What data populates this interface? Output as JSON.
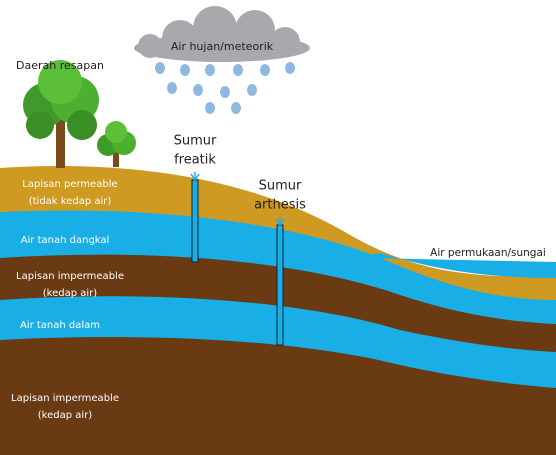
{
  "cloud": {
    "label": "Air hujan/meteorik"
  },
  "recharge_area": {
    "label": "Daerah resapan"
  },
  "wells": [
    {
      "lines": [
        "Sumur",
        "freatik"
      ]
    },
    {
      "lines": [
        "Sumur",
        "arthesis"
      ]
    }
  ],
  "layers": [
    {
      "lines": [
        "Lapisan permeable",
        "(tidak kedap air)"
      ]
    },
    {
      "lines": [
        "Air tanah dangkal"
      ]
    },
    {
      "lines": [
        "Lapisan impermeable",
        "(kedap air)"
      ]
    },
    {
      "lines": [
        "Air tanah dalam"
      ]
    },
    {
      "lines": [
        "Lapisan impermeable",
        "(kedap air)"
      ]
    }
  ],
  "surface_water": {
    "label": "Air permukaan/sungai"
  }
}
